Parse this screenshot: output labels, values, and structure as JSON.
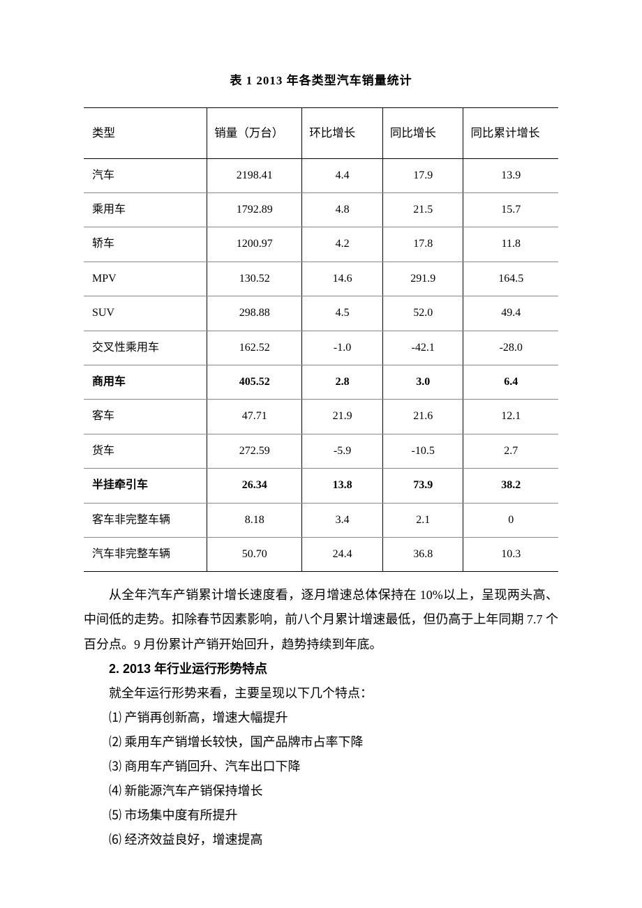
{
  "table": {
    "title": "表 1    2013 年各类型汽车销量统计",
    "columns": [
      "类型",
      "销量（万台）",
      "环比增长",
      "同比增长",
      "同比累计增长"
    ],
    "rows": [
      {
        "cells": [
          "汽车",
          "2198.41",
          "4.4",
          "17.9",
          "13.9"
        ],
        "bold": false
      },
      {
        "cells": [
          "乘用车",
          "1792.89",
          "4.8",
          "21.5",
          "15.7"
        ],
        "bold": false
      },
      {
        "cells": [
          "轿车",
          "1200.97",
          "4.2",
          "17.8",
          "11.8"
        ],
        "bold": false
      },
      {
        "cells": [
          "MPV",
          "130.52",
          "14.6",
          "291.9",
          "164.5"
        ],
        "bold": false
      },
      {
        "cells": [
          "SUV",
          "298.88",
          "4.5",
          "52.0",
          "49.4"
        ],
        "bold": false
      },
      {
        "cells": [
          "交叉性乘用车",
          "162.52",
          "-1.0",
          "-42.1",
          "-28.0"
        ],
        "bold": false
      },
      {
        "cells": [
          "商用车",
          "405.52",
          "2.8",
          "3.0",
          "6.4"
        ],
        "bold": true
      },
      {
        "cells": [
          "客车",
          "47.71",
          "21.9",
          "21.6",
          "12.1"
        ],
        "bold": false
      },
      {
        "cells": [
          "货车",
          "272.59",
          "-5.9",
          "-10.5",
          "2.7"
        ],
        "bold": false
      },
      {
        "cells": [
          "半挂牵引车",
          "26.34",
          "13.8",
          "73.9",
          "38.2"
        ],
        "bold": true
      },
      {
        "cells": [
          "客车非完整车辆",
          "8.18",
          "3.4",
          "2.1",
          "0"
        ],
        "bold": false
      },
      {
        "cells": [
          "汽车非完整车辆",
          "50.70",
          "24.4",
          "36.8",
          "10.3"
        ],
        "bold": false
      }
    ]
  },
  "para1": "从全年汽车产销累计增长速度看，逐月增速总体保持在 10%以上，呈现两头高、中间低的走势。扣除春节因素影响，前八个月累计增速最低，但仍高于上年同期 7.7 个百分点。9 月份累计产销开始回升，趋势持续到年底。",
  "heading": "2.  2013 年行业运行形势特点",
  "para2": "就全年运行形势来看，主要呈现以下几个特点：",
  "items": [
    "⑴ 产销再创新高，增速大幅提升",
    "⑵ 乘用车产销增长较快，国产品牌市占率下降",
    "⑶ 商用车产销回升、汽车出口下降",
    "⑷ 新能源汽车产销保持增长",
    "⑸ 市场集中度有所提升",
    "⑹ 经济效益良好，增速提高"
  ]
}
